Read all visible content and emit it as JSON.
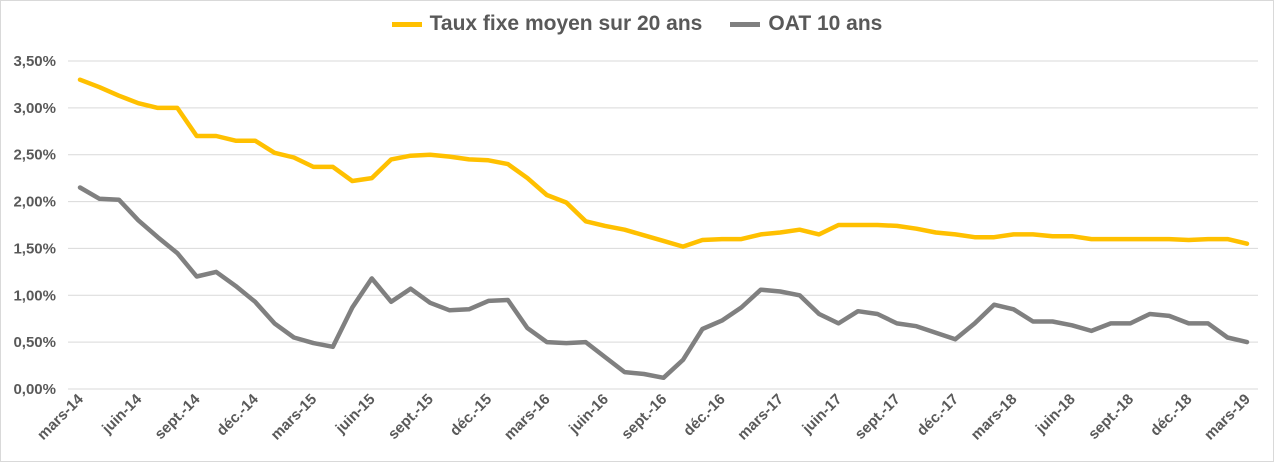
{
  "chart_data": {
    "type": "line",
    "title": "",
    "xlabel": "",
    "ylabel": "",
    "ylim": [
      0,
      3.5
    ],
    "yticks": [
      "0,00%",
      "0,50%",
      "1,00%",
      "1,50%",
      "2,00%",
      "2,50%",
      "3,00%",
      "3,50%"
    ],
    "ytick_values": [
      0,
      0.5,
      1,
      1.5,
      2,
      2.5,
      3,
      3.5
    ],
    "grid": true,
    "legend_position": "top",
    "x_tick_labels": [
      "mars-14",
      "juin-14",
      "sept.-14",
      "déc.-14",
      "mars-15",
      "juin-15",
      "sept.-15",
      "déc.-15",
      "mars-16",
      "juin-16",
      "sept.-16",
      "déc.-16",
      "mars-17",
      "juin-17",
      "sept.-17",
      "déc.-17",
      "mars-18",
      "juin-18",
      "sept.-18",
      "déc.-18",
      "mars-19"
    ],
    "x_tick_every_months": 3,
    "series": [
      {
        "name": "Taux fixe moyen sur 20 ans",
        "color": "#FFC000",
        "values": [
          3.3,
          3.22,
          3.13,
          3.05,
          3.0,
          3.0,
          2.7,
          2.7,
          2.65,
          2.65,
          2.52,
          2.47,
          2.37,
          2.37,
          2.22,
          2.25,
          2.45,
          2.49,
          2.5,
          2.48,
          2.45,
          2.44,
          2.4,
          2.25,
          2.07,
          1.99,
          1.79,
          1.74,
          1.7,
          1.64,
          1.58,
          1.52,
          1.59,
          1.6,
          1.6,
          1.65,
          1.67,
          1.7,
          1.65,
          1.75,
          1.75,
          1.75,
          1.74,
          1.71,
          1.67,
          1.65,
          1.62,
          1.62,
          1.65,
          1.65,
          1.63,
          1.63,
          1.6,
          1.6,
          1.6,
          1.6,
          1.6,
          1.59,
          1.6,
          1.6,
          1.55
        ]
      },
      {
        "name": "OAT 10 ans",
        "color": "#808080",
        "values": [
          2.15,
          2.03,
          2.02,
          1.8,
          1.62,
          1.45,
          1.2,
          1.25,
          1.1,
          0.93,
          0.7,
          0.55,
          0.49,
          0.45,
          0.87,
          1.18,
          0.93,
          1.07,
          0.92,
          0.84,
          0.85,
          0.94,
          0.95,
          0.65,
          0.5,
          0.49,
          0.5,
          0.34,
          0.18,
          0.16,
          0.12,
          0.31,
          0.64,
          0.73,
          0.87,
          1.06,
          1.04,
          1.0,
          0.8,
          0.7,
          0.83,
          0.8,
          0.7,
          0.67,
          0.6,
          0.53,
          0.7,
          0.9,
          0.85,
          0.72,
          0.72,
          0.68,
          0.62,
          0.7,
          0.7,
          0.8,
          0.78,
          0.7,
          0.7,
          0.55,
          0.5
        ]
      }
    ]
  }
}
